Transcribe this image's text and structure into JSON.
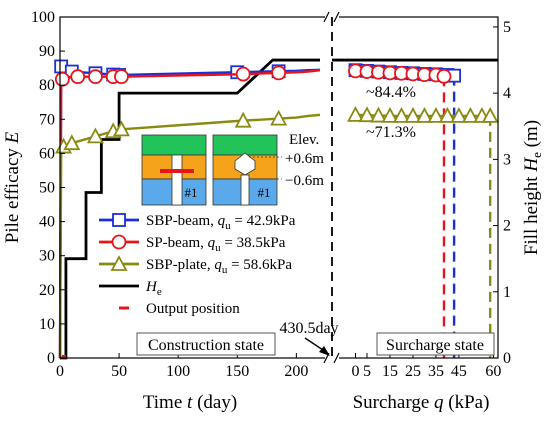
{
  "chart_data": {
    "type": "line",
    "ylabel_left": "Pile efficacy E",
    "ylabel_right_main": "Fill height H",
    "ylabel_right_sub": "e",
    "ylabel_right_unit": "(m)",
    "xlabel_left": "Time t (day)",
    "xlabel_right": "Surcharge q (kPa)",
    "y_left_ticks": [
      "0",
      "10",
      "20",
      "30",
      "40",
      "50",
      "60",
      "70",
      "80",
      "90",
      "100"
    ],
    "y_left_lim": [
      0,
      100
    ],
    "y_right_ticks": [
      "0",
      "1",
      "2",
      "3",
      "4",
      "5"
    ],
    "y_right_lim": [
      0,
      5.15
    ],
    "x_time_ticks": [
      "0",
      "50",
      "100",
      "150",
      "200"
    ],
    "x_time_values": [
      0,
      50,
      100,
      150,
      200
    ],
    "x_time_lim": [
      0,
      220
    ],
    "x_q_ticks": [
      "0",
      "5",
      "15",
      "25",
      "35",
      "45",
      "60"
    ],
    "x_q_values": [
      0,
      5,
      15,
      25,
      35,
      45,
      60
    ],
    "x_q_lim": [
      -5,
      62
    ],
    "time_series": [
      {
        "name": "SBP-beam, q_u = 42.9kPa",
        "color": "#1a2fd6",
        "marker": "square",
        "x": [
          0,
          1,
          3,
          10,
          30,
          50,
          150,
          200,
          210,
          220
        ],
        "y": [
          0,
          85.5,
          84.5,
          84,
          83.5,
          83,
          83.8,
          84.2,
          84.4,
          84.5
        ],
        "marker_x": [
          1,
          10,
          30,
          45,
          50,
          150,
          185
        ]
      },
      {
        "name": "SP-beam, q_u = 38.5kPa",
        "color": "#e8141c",
        "marker": "circle",
        "x": [
          0,
          1,
          3,
          10,
          30,
          50,
          150,
          200,
          210,
          220
        ],
        "y": [
          0,
          81.5,
          82,
          82.5,
          82.5,
          82.5,
          83.2,
          83.8,
          84,
          84.4
        ],
        "marker_x": [
          2,
          15,
          30,
          45,
          52,
          155,
          185
        ]
      },
      {
        "name": "SBP-plate, q_u = 58.6kPa",
        "color": "#8a8a12",
        "marker": "triangle",
        "x": [
          0,
          1,
          3,
          10,
          30,
          50,
          150,
          200,
          210,
          220
        ],
        "y": [
          0,
          60,
          62,
          63,
          65,
          67,
          69.5,
          70.5,
          71,
          71.3
        ],
        "marker_x": [
          3,
          10,
          30,
          45,
          52,
          155,
          185
        ]
      }
    ],
    "he_series": {
      "name": "H_e",
      "color": "#000000",
      "x": [
        0,
        5,
        5,
        22,
        22,
        35,
        35,
        50,
        50,
        150,
        180,
        220
      ],
      "y": [
        0,
        0,
        1.5,
        1.5,
        2.5,
        2.5,
        3.3,
        3.3,
        4.0,
        4.0,
        4.5,
        4.5
      ],
      "surcharge_level": 4.5
    },
    "q_series": [
      {
        "color": "#1a2fd6",
        "marker": "square",
        "q": [
          0,
          5,
          10,
          15,
          20,
          25,
          30,
          35,
          40,
          42.9
        ],
        "y": [
          84.4,
          84.2,
          84,
          83.8,
          83.6,
          83.5,
          83.3,
          83.2,
          83,
          82.8
        ],
        "marker_q": [
          0,
          5,
          10,
          15,
          20,
          25,
          30,
          35,
          40,
          42.9
        ],
        "fail_q": 42.9,
        "fail_bottom": 0
      },
      {
        "color": "#e8141c",
        "marker": "circle",
        "q": [
          0,
          5,
          10,
          15,
          20,
          25,
          30,
          35,
          38.5
        ],
        "y": [
          84.2,
          84,
          83.8,
          83.6,
          83.5,
          83.3,
          83.1,
          83,
          82.6
        ],
        "marker_q": [
          0,
          5,
          10,
          15,
          20,
          25,
          30,
          35,
          38.5
        ],
        "fail_q": 38.5,
        "fail_bottom": 0
      },
      {
        "color": "#8a8a12",
        "marker": "triangle",
        "q": [
          0,
          5,
          10,
          15,
          20,
          25,
          30,
          35,
          40,
          45,
          50,
          55,
          58.6
        ],
        "y": [
          71.3,
          71.2,
          71.1,
          71,
          71,
          71,
          71,
          71,
          71,
          71,
          71,
          71,
          71
        ],
        "marker_q": [
          0,
          5,
          10,
          15,
          20,
          25,
          30,
          35,
          40,
          45,
          50,
          55,
          58.6
        ],
        "fail_q": 58.6,
        "fail_bottom": 0
      }
    ],
    "output_position_marks": [
      {
        "t": 0,
        "y": 0,
        "color": "#e8141c"
      }
    ],
    "legend": [
      {
        "label": "SBP-beam, ",
        "qu": "q",
        "qu_sub": "u",
        "qu_val": " = 42.9kPa",
        "color": "#1a2fd6",
        "marker": "square"
      },
      {
        "label": "SP-beam, ",
        "qu": "q",
        "qu_sub": "u",
        "qu_val": " = 38.5kPa",
        "color": "#e8141c",
        "marker": "circle"
      },
      {
        "label": "SBP-plate, ",
        "qu": "q",
        "qu_sub": "u",
        "qu_val": " = 58.6kPa",
        "color": "#8a8a12",
        "marker": "triangle"
      },
      {
        "label": "H",
        "label_sub": "e",
        "color": "#000000",
        "marker": "line"
      },
      {
        "label": "Output position",
        "color": "#e8141c",
        "marker": "dash"
      }
    ],
    "annotations": {
      "construction": "Construction state",
      "surcharge": "Surcharge state",
      "day": "430.5day",
      "pct_beam": "~84.4%",
      "pct_plate": "~71.3%",
      "elev": "Elev.",
      "elev_plus": "+0.6m",
      "elev_minus": "−0.6m",
      "inset1_label": "#1",
      "inset2_label": "#1"
    }
  }
}
